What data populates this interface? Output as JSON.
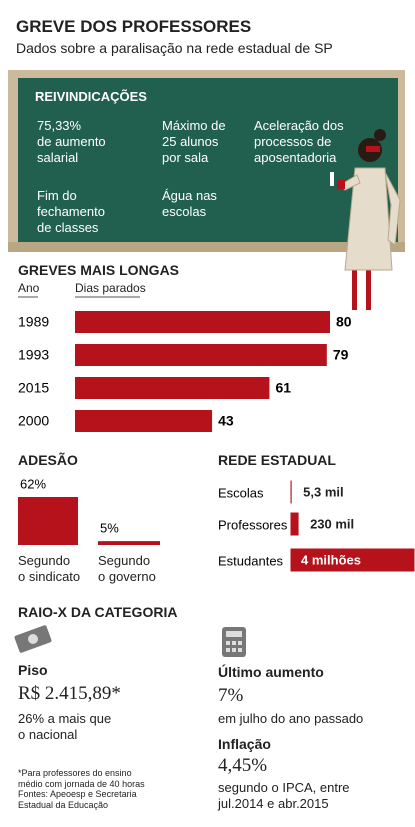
{
  "header": {
    "title": "GREVE DOS PROFESSORES",
    "subtitle": "Dados sobre a paralisação na rede estadual de SP"
  },
  "board": {
    "title": "REIVINDICAÇÕES",
    "items": [
      "75,33%\nde aumento\nsalarial",
      "Máximo de\n25 alunos\npor sala",
      "Aceleração dos\nprocessos de\naposentadoria",
      "Fim do\nfechamento\nde classes",
      "Água nas\nescolas"
    ]
  },
  "chart_data": [
    {
      "type": "bar",
      "title": "GREVES MAIS LONGAS",
      "x_label": "Ano",
      "y_label": "Dias parados",
      "categories": [
        "1989",
        "1993",
        "2015",
        "2000"
      ],
      "values": [
        80,
        79,
        61,
        43
      ],
      "color": "#b5121b"
    },
    {
      "type": "bar",
      "title": "ADESÃO",
      "categories": [
        "Segundo\no sindicato",
        "Segundo\no governo"
      ],
      "values": [
        62,
        5
      ],
      "value_labels": [
        "62%",
        "5%"
      ],
      "color": "#b5121b"
    },
    {
      "type": "bar",
      "title": "REDE ESTADUAL",
      "categories": [
        "Escolas",
        "Professores",
        "Estudantes"
      ],
      "values": [
        5300,
        230000,
        4000000
      ],
      "value_labels": [
        "5,3 mil",
        "230 mil",
        "4 milhões"
      ],
      "color": "#b5121b"
    }
  ],
  "raio_x": {
    "title": "RAIO-X DA CATEGORIA",
    "piso": {
      "label": "Piso",
      "value": "R$ 2.415,89*",
      "note": "26% a mais que\no nacional"
    },
    "aumento": {
      "label": "Último aumento",
      "value": "7%",
      "note": "em julho do ano passado"
    },
    "inflacao": {
      "label": "Inflação",
      "value": "4,45%",
      "note": "segundo o IPCA, entre\njul.2014 e abr.2015"
    },
    "footnote": "*Para professores do ensino\nmédio com jornada de 40 horas\nFontes: Apeoesp e Secretaria\nEstadual da Educação"
  }
}
